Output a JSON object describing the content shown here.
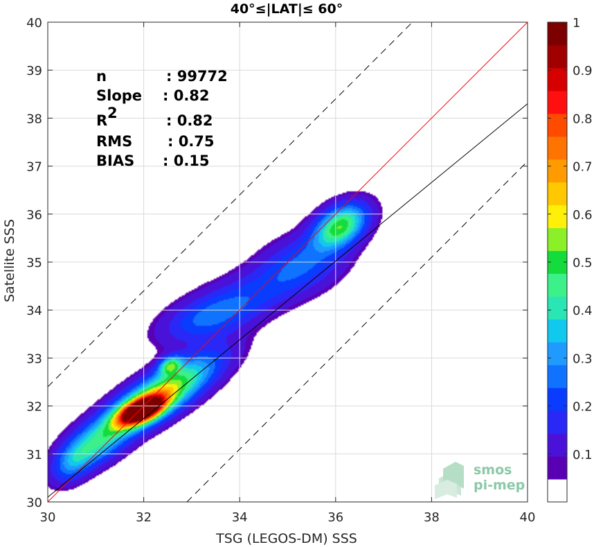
{
  "chart_data": {
    "type": "heatmap",
    "title": "40°≤|LAT|≤ 60°",
    "xlabel": "TSG (LEGOS-DM) SSS",
    "ylabel": "Satellite SSS",
    "xlim": [
      30,
      40
    ],
    "ylim": [
      30,
      40
    ],
    "xticks": [
      30,
      32,
      34,
      36,
      38,
      40
    ],
    "yticks": [
      30,
      31,
      32,
      33,
      34,
      35,
      36,
      37,
      38,
      39,
      40
    ],
    "grid": true,
    "colorbar": {
      "min": 0,
      "max": 1,
      "ticks": [
        0.1,
        0.2,
        0.3,
        0.4,
        0.5,
        0.6,
        0.7,
        0.8,
        0.9,
        1
      ],
      "tick_labels": [
        "0.1",
        "0.2",
        "0.3",
        "0.4",
        "0.5",
        "0.6",
        "0.7",
        "0.8",
        "0.9",
        "1"
      ],
      "colors": [
        "#ffffff",
        "#5a00b4",
        "#4a12d8",
        "#2a28f6",
        "#0a3cff",
        "#0f73ff",
        "#1f9bff",
        "#11c8ef",
        "#2ae6b4",
        "#3cf08a",
        "#14dc3c",
        "#8cf028",
        "#fff00a",
        "#ffc800",
        "#ff9b00",
        "#ff7300",
        "#ff4b00",
        "#ff0f0f",
        "#d70000",
        "#a00000",
        "#7d0000"
      ]
    },
    "stats": [
      {
        "label": "n",
        "sep": ": ",
        "value": "99772"
      },
      {
        "label": "Slope",
        "sep": ": ",
        "value": "0.82"
      },
      {
        "label": "R",
        "sup": "2",
        "sep": ": ",
        "value": "0.82"
      },
      {
        "label": "RMS",
        "sep": ": ",
        "value": "0.75"
      },
      {
        "label": "BIAS",
        "sep": ": ",
        "value": "0.15"
      }
    ],
    "lines": [
      {
        "name": "identity",
        "color": "#ff0000",
        "style": "solid",
        "slope": 1,
        "intercept": 0
      },
      {
        "name": "regression",
        "color": "#000000",
        "style": "solid",
        "slope": 0.82,
        "intercept": 5.5
      },
      {
        "name": "upper-bound",
        "color": "#000000",
        "style": "dashed",
        "slope": 1,
        "intercept": 2.4
      },
      {
        "name": "lower-bound",
        "color": "#000000",
        "style": "dashed",
        "slope": 1,
        "intercept": -2.9
      }
    ],
    "density_peaks": [
      {
        "x": 31.95,
        "y": 31.9,
        "sx": 0.32,
        "sy": 0.2,
        "rho": 0.55,
        "amp": 1.0
      },
      {
        "x": 32.3,
        "y": 32.2,
        "sx": 0.8,
        "sy": 0.55,
        "rho": 0.8,
        "amp": 0.6
      },
      {
        "x": 32.55,
        "y": 32.85,
        "sx": 0.16,
        "sy": 0.13,
        "rho": 0.3,
        "amp": 0.35
      },
      {
        "x": 31.0,
        "y": 31.2,
        "sx": 0.45,
        "sy": 0.35,
        "rho": 0.5,
        "amp": 0.28
      },
      {
        "x": 33.3,
        "y": 33.8,
        "sx": 0.65,
        "sy": 0.35,
        "rho": 0.5,
        "amp": 0.16
      },
      {
        "x": 34.2,
        "y": 34.3,
        "sx": 0.9,
        "sy": 0.45,
        "rho": 0.6,
        "amp": 0.14
      },
      {
        "x": 35.3,
        "y": 35.0,
        "sx": 0.6,
        "sy": 0.4,
        "rho": 0.3,
        "amp": 0.17
      },
      {
        "x": 36.1,
        "y": 35.75,
        "sx": 0.38,
        "sy": 0.32,
        "rho": 0.4,
        "amp": 0.48
      },
      {
        "x": 30.5,
        "y": 30.8,
        "sx": 0.3,
        "sy": 0.3,
        "rho": 0.4,
        "amp": 0.18
      }
    ]
  },
  "logo": {
    "line1": "smos",
    "line2": "pi-mep"
  }
}
